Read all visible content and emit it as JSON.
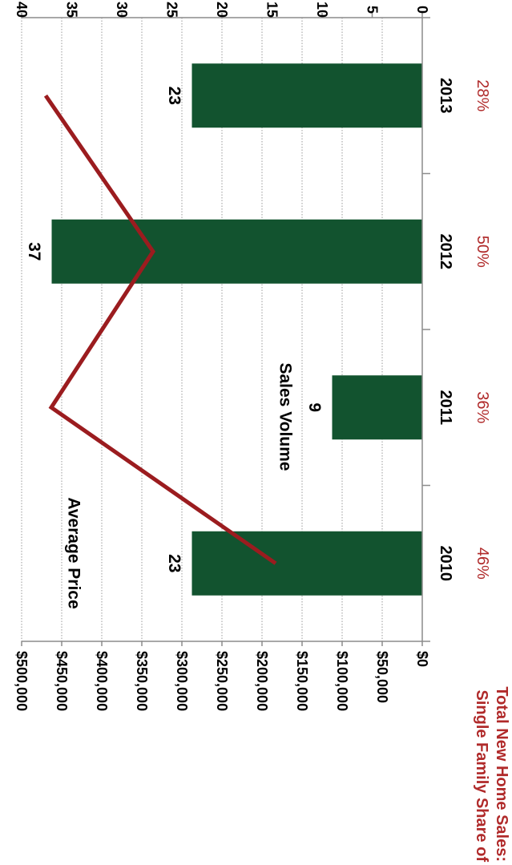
{
  "chart_data": {
    "type": "bar",
    "categories": [
      "2010",
      "2011",
      "2012",
      "2013"
    ],
    "series": [
      {
        "name": "Sales Volume",
        "kind": "bar",
        "axis": "secondary",
        "values": [
          23,
          9,
          37,
          23
        ],
        "color": "#12532f"
      },
      {
        "name": "Average Price",
        "kind": "line",
        "axis": "primary",
        "values": [
          183000,
          463000,
          336000,
          470000
        ],
        "color": "#9b1c1f"
      }
    ],
    "data_labels": [
      "23",
      "9",
      "37",
      "23"
    ],
    "annotations": {
      "line_label": "Average Price",
      "bar_label": "Sales Volume"
    },
    "primary_axis": {
      "range": [
        0,
        500000
      ],
      "ticks": [
        "$0",
        "$50,000",
        "$100,000",
        "$150,000",
        "$200,000",
        "$250,000",
        "$300,000",
        "$350,000",
        "$400,000",
        "$450,000",
        "$500,000"
      ]
    },
    "secondary_axis": {
      "range": [
        0,
        40
      ],
      "ticks": [
        "0",
        "5",
        "10",
        "15",
        "20",
        "25",
        "30",
        "35",
        "40"
      ]
    },
    "share_row": {
      "label_line1": "Single Family Share of",
      "label_line2": "Total New Home Sales:",
      "values": [
        "46%",
        "36%",
        "50%",
        "28%"
      ],
      "color": "#b02a2a"
    },
    "grid": true,
    "orientation": "rotated-90-clockwise"
  }
}
